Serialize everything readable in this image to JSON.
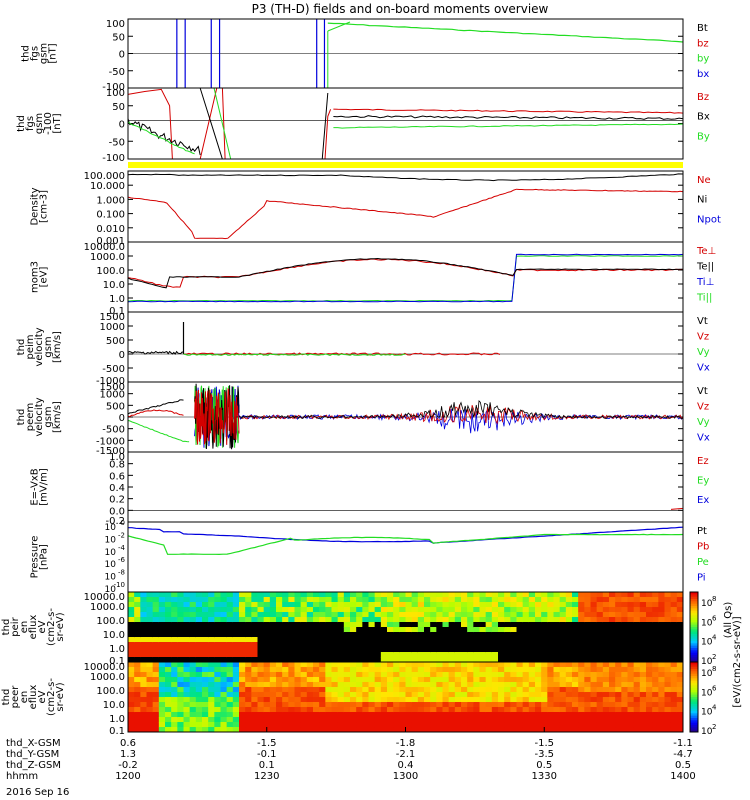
{
  "title": "P3 (TH-D) fields and on-board moments overview",
  "date_label": "2016 Sep 16",
  "colors": {
    "black": "#000000",
    "red": "#d40000",
    "green": "#22dd22",
    "blue": "#0000dd",
    "status_bar": "#ffff00"
  },
  "chart_data": [
    {
      "type": "line",
      "panel": "fgs",
      "ylabel": [
        "thd",
        "fgs",
        "gsm",
        "[nT]"
      ],
      "ylim": [
        -100,
        100
      ],
      "ticks": [
        "100",
        "50",
        "0",
        "-50",
        "-100"
      ],
      "series": [
        {
          "name": "Bt",
          "color": "#000000"
        },
        {
          "name": "bz",
          "color": "#d40000"
        },
        {
          "name": "by",
          "color": "#22dd22"
        },
        {
          "name": "bx",
          "color": "#0000dd"
        }
      ]
    },
    {
      "type": "line",
      "panel": "fgs_zoom",
      "ylabel": [
        "thd",
        "fgs",
        "gsm",
        "-100",
        "[nT]"
      ],
      "ylim": [
        -120,
        100
      ],
      "ticks": [
        "100",
        "50",
        "0",
        "-50",
        "-100"
      ],
      "series": [
        {
          "name": "Bz",
          "color": "#d40000"
        },
        {
          "name": "Bx",
          "color": "#000000"
        },
        {
          "name": "By",
          "color": "#22dd22"
        }
      ]
    },
    {
      "type": "line",
      "panel": "density",
      "ylabel": [
        "Density",
        "[cm-3]"
      ],
      "ticks": [
        "100.000",
        "10.000",
        "1.000",
        "0.100",
        "0.010",
        "0.001"
      ],
      "series": [
        {
          "name": "Ne",
          "color": "#d40000"
        },
        {
          "name": "Ni",
          "color": "#000000"
        },
        {
          "name": "Npot",
          "color": "#0000dd"
        }
      ]
    },
    {
      "type": "line",
      "panel": "temperature",
      "ylabel": [
        "mom3",
        "[eV]"
      ],
      "ticks": [
        "10000.0",
        "1000.0",
        "100.0",
        "10.0",
        "1.0",
        "0.1"
      ],
      "series": [
        {
          "name": "Te⊥",
          "color": "#d40000"
        },
        {
          "name": "Te||",
          "color": "#000000"
        },
        {
          "name": "Ti⊥",
          "color": "#0000dd"
        },
        {
          "name": "Ti||",
          "color": "#22dd22"
        }
      ]
    },
    {
      "type": "line",
      "panel": "peim_velocity",
      "ylabel": [
        "thd",
        "peim",
        "velocity",
        "gsm",
        "[km/s]"
      ],
      "ylim": [
        -1000,
        1500
      ],
      "ticks": [
        "1500",
        "1000",
        "500",
        "0",
        "-500",
        "-1000"
      ],
      "series": [
        {
          "name": "Vt",
          "color": "#000000"
        },
        {
          "name": "Vz",
          "color": "#d40000"
        },
        {
          "name": "Vy",
          "color": "#22dd22"
        },
        {
          "name": "Vx",
          "color": "#0000dd"
        }
      ]
    },
    {
      "type": "line",
      "panel": "peem_velocity",
      "ylabel": [
        "thd",
        "peem",
        "velocity",
        "gsm",
        "[km/s]"
      ],
      "ylim": [
        -1500,
        1500
      ],
      "ticks": [
        "1500",
        "1000",
        "500",
        "0",
        "-500",
        "-1000",
        "-1500"
      ],
      "series": [
        {
          "name": "Vt",
          "color": "#000000"
        },
        {
          "name": "Vz",
          "color": "#d40000"
        },
        {
          "name": "Vy",
          "color": "#22dd22"
        },
        {
          "name": "Vx",
          "color": "#0000dd"
        }
      ]
    },
    {
      "type": "line",
      "panel": "efield",
      "ylabel": [
        "E=-VxB",
        "[mV/m]"
      ],
      "ylim": [
        -0.2,
        1.0
      ],
      "ticks": [
        "1.0",
        "0.8",
        "0.6",
        "0.4",
        "0.2",
        "0.0",
        "-0.2"
      ],
      "series": [
        {
          "name": "Ez",
          "color": "#d40000"
        },
        {
          "name": "Ey",
          "color": "#22dd22"
        },
        {
          "name": "Ex",
          "color": "#0000dd"
        }
      ]
    },
    {
      "type": "line",
      "panel": "pressure",
      "ylabel": [
        "Pressure",
        "[nPa]"
      ],
      "tick_exponents": [
        "0",
        "-2",
        "-4",
        "-6",
        "-8",
        "-10"
      ],
      "series": [
        {
          "name": "Pt",
          "color": "#000000"
        },
        {
          "name": "Pb",
          "color": "#d40000"
        },
        {
          "name": "Pe",
          "color": "#22dd22"
        },
        {
          "name": "Pi",
          "color": "#0000dd"
        }
      ]
    },
    {
      "type": "heatmap",
      "panel": "peir_spec",
      "ylabel": [
        "thd",
        "peir",
        "en",
        "eflux",
        "eV",
        "(cm2-s-",
        "sr-eV)"
      ],
      "ticks": [
        "10000.0",
        "1000.0",
        "100.0",
        "10.0",
        "1.0",
        "0.1"
      ]
    },
    {
      "type": "heatmap",
      "panel": "peer_spec",
      "ylabel": [
        "thd",
        "peer",
        "en",
        "eflux",
        "eV",
        "(cm2-s-",
        "sr-eV)"
      ],
      "ticks": [
        "10000.0",
        "1000.0",
        "100.0",
        "10.0",
        "1.0",
        "0.1"
      ]
    }
  ],
  "colorbar": {
    "label": "[eV/(cm2-s-sr-eV)]",
    "label2": "(All Qs)",
    "tick_exponents": [
      "8",
      "6",
      "4",
      "2"
    ]
  },
  "x_axis": {
    "rows": [
      {
        "name": "thd_X-GSM",
        "values": [
          "0.6",
          "-1.5",
          "-1.8",
          "-1.5",
          "-1.1"
        ]
      },
      {
        "name": "thd_Y-GSM",
        "values": [
          "1.3",
          "-0.1",
          "-2.1",
          "-3.5",
          "-4.7"
        ]
      },
      {
        "name": "thd_Z-GSM",
        "values": [
          "-0.2",
          "0.1",
          "0.4",
          "0.5",
          "0.5"
        ]
      },
      {
        "name": "hhmm",
        "values": [
          "1200",
          "1230",
          "1300",
          "1330",
          "1400"
        ]
      }
    ]
  }
}
